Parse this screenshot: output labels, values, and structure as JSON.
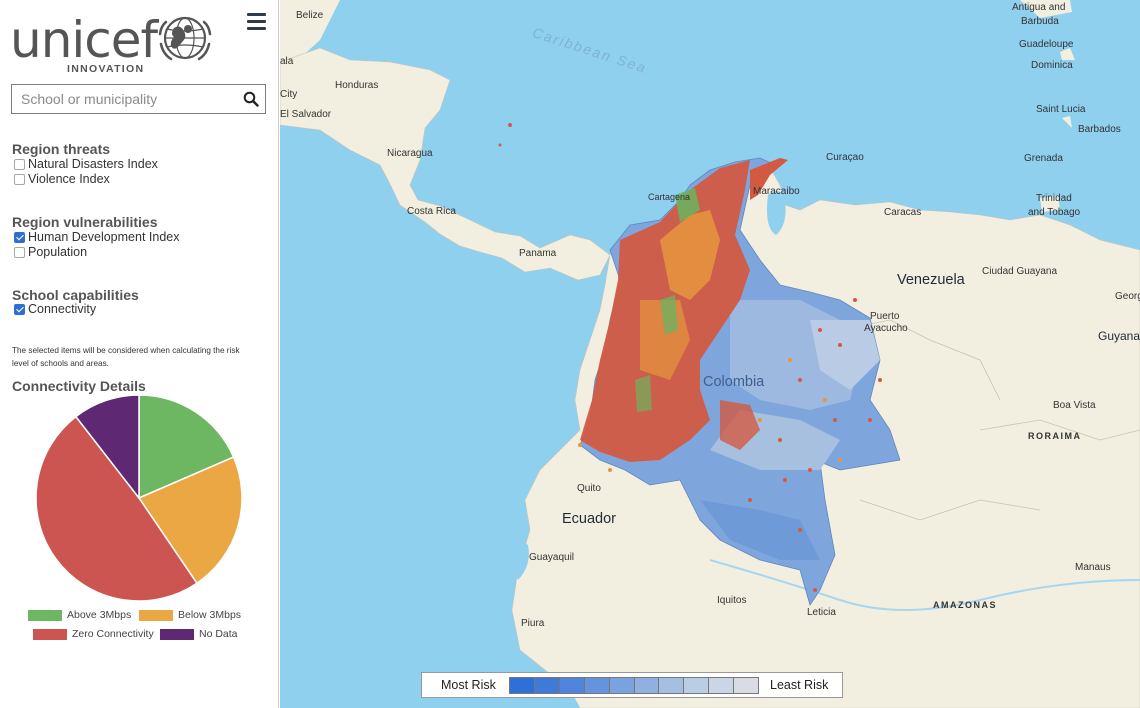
{
  "brand": {
    "name": "unicef",
    "subtitle": "INNOVATION"
  },
  "search": {
    "placeholder": "School or municipality",
    "value": ""
  },
  "region_threats": {
    "title": "Region threats",
    "options": [
      {
        "label": "Natural Disasters Index",
        "checked": false
      },
      {
        "label": "Violence Index",
        "checked": false
      }
    ]
  },
  "region_vulnerabilities": {
    "title": "Region vulnerabilities",
    "options": [
      {
        "label": "Human Development Index",
        "checked": true
      },
      {
        "label": "Population",
        "checked": false
      }
    ]
  },
  "school_capabilities": {
    "title": "School capabilities",
    "options": [
      {
        "label": "Connectivity",
        "checked": true
      }
    ]
  },
  "note": "The selected items will be considered when calculating the risk level of schools and areas.",
  "connectivity": {
    "title": "Connectivity Details",
    "legend": [
      {
        "label": "Above 3Mbps",
        "color": "#6db662"
      },
      {
        "label": "Below 3Mbps",
        "color": "#eaa744"
      },
      {
        "label": "Zero Connectivity",
        "color": "#cd5551"
      },
      {
        "label": "No Data",
        "color": "#5e2872"
      }
    ]
  },
  "chart_data": {
    "type": "pie",
    "title": "Connectivity Details",
    "categories": [
      "Above 3Mbps",
      "Below 3Mbps",
      "Zero Connectivity",
      "No Data"
    ],
    "values": [
      18.5,
      22.0,
      49.0,
      10.5
    ],
    "colors": [
      "#6db662",
      "#eaa744",
      "#cd5551",
      "#5e2872"
    ],
    "legend_position": "bottom"
  },
  "map": {
    "labels": [
      {
        "text": "Belize",
        "kind": "small"
      },
      {
        "text": "Caribbean Sea",
        "kind": "sea"
      },
      {
        "text": "Honduras",
        "kind": "small"
      },
      {
        "text": "El Salvador",
        "kind": "small"
      },
      {
        "text": "Nicaragua",
        "kind": "small"
      },
      {
        "text": "Costa Rica",
        "kind": "small"
      },
      {
        "text": "Panama",
        "kind": "small"
      },
      {
        "text": "Antigua and",
        "kind": "small"
      },
      {
        "text": "Barbuda",
        "kind": "small"
      },
      {
        "text": "Guadeloupe",
        "kind": "small"
      },
      {
        "text": "Dominica",
        "kind": "small"
      },
      {
        "text": "Saint Lucia",
        "kind": "small"
      },
      {
        "text": "Barbados",
        "kind": "small"
      },
      {
        "text": "Grenada",
        "kind": "small"
      },
      {
        "text": "Curaçao",
        "kind": "small"
      },
      {
        "text": "Maracaibo",
        "kind": "small"
      },
      {
        "text": "Caracas",
        "kind": "small"
      },
      {
        "text": "Trinidad",
        "kind": "small"
      },
      {
        "text": "and Tobago",
        "kind": "small"
      },
      {
        "text": "Venezuela",
        "kind": "country"
      },
      {
        "text": "Ciudad Guayana",
        "kind": "small"
      },
      {
        "text": "Puerto",
        "kind": "small"
      },
      {
        "text": "Ayacucho",
        "kind": "small"
      },
      {
        "text": "Guyana",
        "kind": "small"
      },
      {
        "text": "Colombia",
        "kind": "country"
      },
      {
        "text": "Boa Vista",
        "kind": "small"
      },
      {
        "text": "RORAIMA",
        "kind": "region"
      },
      {
        "text": "Quito",
        "kind": "small"
      },
      {
        "text": "Ecuador",
        "kind": "country"
      },
      {
        "text": "Guayaquil",
        "kind": "small"
      },
      {
        "text": "Iquitos",
        "kind": "small"
      },
      {
        "text": "Leticia",
        "kind": "small"
      },
      {
        "text": "Piura",
        "kind": "small"
      },
      {
        "text": "Manaus",
        "kind": "small"
      },
      {
        "text": "AMAZONAS",
        "kind": "region"
      },
      {
        "text": "Cartagena",
        "kind": "small"
      },
      {
        "text": "Georg",
        "kind": "small"
      },
      {
        "text": "ala",
        "kind": "small"
      },
      {
        "text": "City",
        "kind": "small"
      }
    ]
  },
  "risk_legend": {
    "most_label": "Most Risk",
    "least_label": "Least Risk",
    "colors": [
      "#2f6fd8",
      "#3f7ad9",
      "#4f85dc",
      "#6593dd",
      "#7aa2df",
      "#8fb0e0",
      "#a4bfe2",
      "#b9cde5",
      "#cad6e6",
      "#d9dde3"
    ]
  }
}
